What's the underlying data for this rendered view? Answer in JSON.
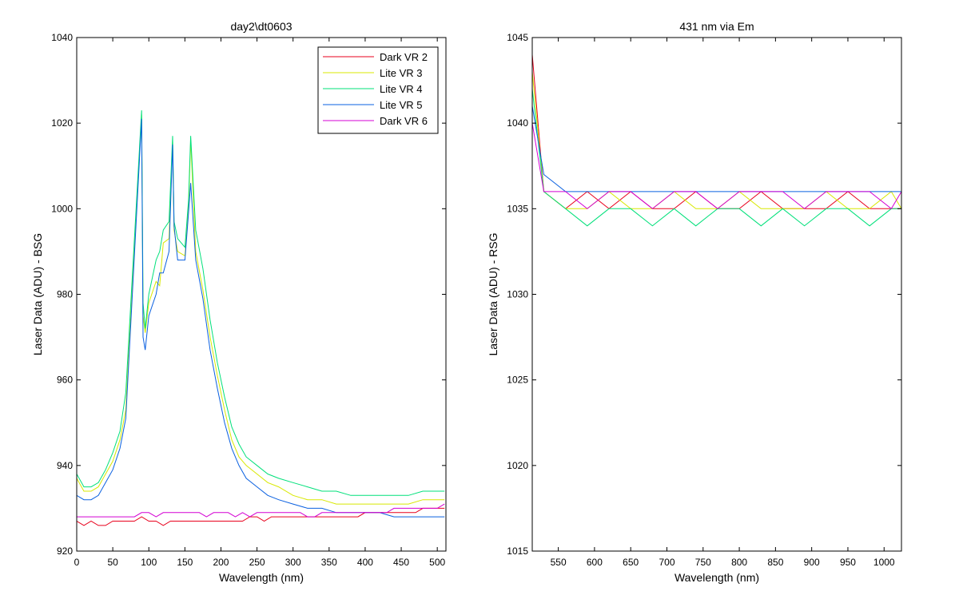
{
  "chart_data": [
    {
      "type": "line",
      "title": "day2\\dt0603",
      "xlabel": "Wavelength (nm)",
      "ylabel": "Laser Data (ADU) - BSG",
      "xlim": [
        0,
        512
      ],
      "ylim": [
        920,
        1040
      ],
      "xticks": [
        "0",
        "50",
        "100",
        "150",
        "200",
        "250",
        "300",
        "350",
        "400",
        "450",
        "500"
      ],
      "yticks": [
        "920",
        "940",
        "960",
        "980",
        "1000",
        "1020",
        "1040"
      ],
      "grid": false,
      "legend": "top-right",
      "series": [
        {
          "name": "Dark VR 2",
          "color": "#e8001c",
          "x": [
            0,
            10,
            20,
            30,
            40,
            50,
            60,
            70,
            80,
            90,
            100,
            110,
            120,
            130,
            140,
            150,
            160,
            170,
            180,
            190,
            200,
            210,
            220,
            230,
            240,
            250,
            260,
            270,
            280,
            290,
            300,
            310,
            320,
            330,
            340,
            350,
            360,
            370,
            380,
            390,
            400,
            410,
            420,
            430,
            440,
            450,
            460,
            470,
            480,
            490,
            500,
            510
          ],
          "y": [
            927,
            926,
            927,
            926,
            926,
            927,
            927,
            927,
            927,
            928,
            927,
            927,
            926,
            927,
            927,
            927,
            927,
            927,
            927,
            927,
            927,
            927,
            927,
            927,
            928,
            928,
            927,
            928,
            928,
            928,
            928,
            928,
            928,
            928,
            928,
            928,
            928,
            928,
            928,
            928,
            929,
            929,
            929,
            929,
            929,
            929,
            929,
            929,
            930,
            930,
            930,
            930
          ]
        },
        {
          "name": "Lite VR 3",
          "color": "#d8e800",
          "x": [
            0,
            10,
            20,
            30,
            40,
            50,
            60,
            68,
            90,
            92,
            95,
            100,
            110,
            115,
            120,
            128,
            133,
            135,
            140,
            150,
            155,
            158,
            165,
            175,
            185,
            195,
            205,
            215,
            225,
            235,
            250,
            265,
            280,
            300,
            320,
            340,
            360,
            380,
            400,
            420,
            440,
            460,
            480,
            500,
            510
          ],
          "y": [
            937,
            934,
            934,
            935,
            938,
            941,
            946,
            953,
            1022,
            975,
            971,
            978,
            983,
            982,
            992,
            993,
            1016,
            995,
            990,
            989,
            1000,
            1016,
            990,
            981,
            970,
            961,
            953,
            946,
            942,
            940,
            938,
            936,
            935,
            933,
            932,
            932,
            931,
            931,
            931,
            931,
            931,
            931,
            932,
            932,
            932
          ]
        },
        {
          "name": "Lite VR 4",
          "color": "#00e07a",
          "x": [
            0,
            10,
            20,
            30,
            40,
            50,
            60,
            68,
            90,
            92,
            95,
            100,
            110,
            115,
            120,
            128,
            133,
            135,
            140,
            150,
            155,
            158,
            165,
            175,
            185,
            195,
            205,
            215,
            225,
            235,
            250,
            265,
            280,
            300,
            320,
            340,
            360,
            380,
            400,
            420,
            440,
            460,
            480,
            500,
            510
          ],
          "y": [
            938,
            935,
            935,
            936,
            939,
            943,
            948,
            957,
            1023,
            978,
            972,
            980,
            988,
            990,
            995,
            997,
            1017,
            997,
            993,
            991,
            1002,
            1017,
            995,
            986,
            974,
            964,
            956,
            949,
            945,
            942,
            940,
            938,
            937,
            936,
            935,
            934,
            934,
            933,
            933,
            933,
            933,
            933,
            934,
            934,
            934
          ]
        },
        {
          "name": "Lite VR 5",
          "color": "#0a60e0",
          "x": [
            0,
            10,
            20,
            30,
            40,
            50,
            60,
            68,
            90,
            92,
            95,
            100,
            110,
            115,
            120,
            128,
            133,
            135,
            140,
            150,
            155,
            158,
            165,
            175,
            185,
            195,
            205,
            215,
            225,
            235,
            250,
            265,
            280,
            300,
            320,
            340,
            360,
            380,
            400,
            420,
            440,
            460,
            480,
            500,
            510
          ],
          "y": [
            933,
            932,
            932,
            933,
            936,
            939,
            944,
            951,
            1021,
            970,
            967,
            975,
            980,
            985,
            985,
            990,
            1015,
            996,
            988,
            988,
            999,
            1006,
            988,
            979,
            967,
            958,
            950,
            944,
            940,
            937,
            935,
            933,
            932,
            931,
            930,
            930,
            929,
            929,
            929,
            929,
            928,
            928,
            928,
            928,
            928
          ]
        },
        {
          "name": "Dark VR 6",
          "color": "#d400d4",
          "x": [
            0,
            10,
            20,
            30,
            40,
            50,
            60,
            70,
            80,
            90,
            100,
            110,
            120,
            130,
            140,
            150,
            160,
            170,
            180,
            190,
            200,
            210,
            220,
            230,
            240,
            250,
            260,
            270,
            280,
            290,
            300,
            310,
            320,
            330,
            340,
            350,
            360,
            370,
            380,
            390,
            400,
            410,
            420,
            430,
            440,
            450,
            460,
            470,
            480,
            490,
            500,
            510
          ],
          "y": [
            928,
            928,
            928,
            928,
            928,
            928,
            928,
            928,
            928,
            929,
            929,
            928,
            929,
            929,
            929,
            929,
            929,
            929,
            928,
            929,
            929,
            929,
            928,
            929,
            928,
            929,
            929,
            929,
            929,
            929,
            929,
            929,
            928,
            928,
            929,
            929,
            929,
            929,
            929,
            929,
            929,
            929,
            929,
            929,
            930,
            930,
            930,
            930,
            930,
            930,
            930,
            931
          ]
        }
      ]
    },
    {
      "type": "line",
      "title": "431 nm via Em",
      "xlabel": "Wavelength (nm)",
      "ylabel": "Laser Data (ADU) - RSG",
      "xlim": [
        514,
        1024
      ],
      "ylim": [
        1015,
        1045
      ],
      "xticks": [
        "550",
        "600",
        "650",
        "700",
        "750",
        "800",
        "850",
        "900",
        "950",
        "1000"
      ],
      "yticks": [
        "1015",
        "1020",
        "1025",
        "1030",
        "1035",
        "1040",
        "1045"
      ],
      "grid": false,
      "legend": "none",
      "series": [
        {
          "name": "",
          "color": "#e8001c",
          "x": [
            514,
            530,
            560,
            590,
            620,
            650,
            680,
            710,
            740,
            770,
            800,
            830,
            860,
            890,
            920,
            950,
            980,
            1010,
            1024
          ],
          "y": [
            1044,
            1036,
            1035,
            1036,
            1035,
            1036,
            1035,
            1035,
            1036,
            1035,
            1035,
            1036,
            1035,
            1035,
            1035,
            1036,
            1035,
            1035,
            1035
          ]
        },
        {
          "name": "",
          "color": "#d8e800",
          "x": [
            514,
            530,
            560,
            590,
            620,
            650,
            680,
            710,
            740,
            770,
            800,
            830,
            860,
            890,
            920,
            950,
            980,
            1010,
            1024
          ],
          "y": [
            1043,
            1036,
            1035,
            1035,
            1036,
            1035,
            1035,
            1036,
            1035,
            1035,
            1036,
            1035,
            1035,
            1035,
            1036,
            1035,
            1035,
            1036,
            1035
          ]
        },
        {
          "name": "",
          "color": "#00e07a",
          "x": [
            514,
            530,
            560,
            590,
            620,
            650,
            680,
            710,
            740,
            770,
            800,
            830,
            860,
            890,
            920,
            950,
            980,
            1010,
            1024
          ],
          "y": [
            1042,
            1036,
            1035,
            1034,
            1035,
            1035,
            1034,
            1035,
            1034,
            1035,
            1035,
            1034,
            1035,
            1034,
            1035,
            1035,
            1034,
            1035,
            1035
          ]
        },
        {
          "name": "",
          "color": "#0a60e0",
          "x": [
            514,
            530,
            560,
            590,
            620,
            650,
            680,
            710,
            740,
            770,
            800,
            830,
            860,
            890,
            920,
            950,
            980,
            1010,
            1024
          ],
          "y": [
            1041,
            1037,
            1036,
            1036,
            1036,
            1036,
            1036,
            1036,
            1036,
            1036,
            1036,
            1036,
            1036,
            1036,
            1036,
            1036,
            1036,
            1036,
            1036
          ]
        },
        {
          "name": "",
          "color": "#d400d4",
          "x": [
            514,
            530,
            560,
            590,
            620,
            650,
            680,
            710,
            740,
            770,
            800,
            830,
            860,
            890,
            920,
            950,
            980,
            1010,
            1024
          ],
          "y": [
            1040,
            1036,
            1036,
            1035,
            1036,
            1036,
            1035,
            1036,
            1036,
            1035,
            1036,
            1036,
            1036,
            1035,
            1036,
            1036,
            1036,
            1035,
            1036
          ]
        }
      ]
    }
  ]
}
